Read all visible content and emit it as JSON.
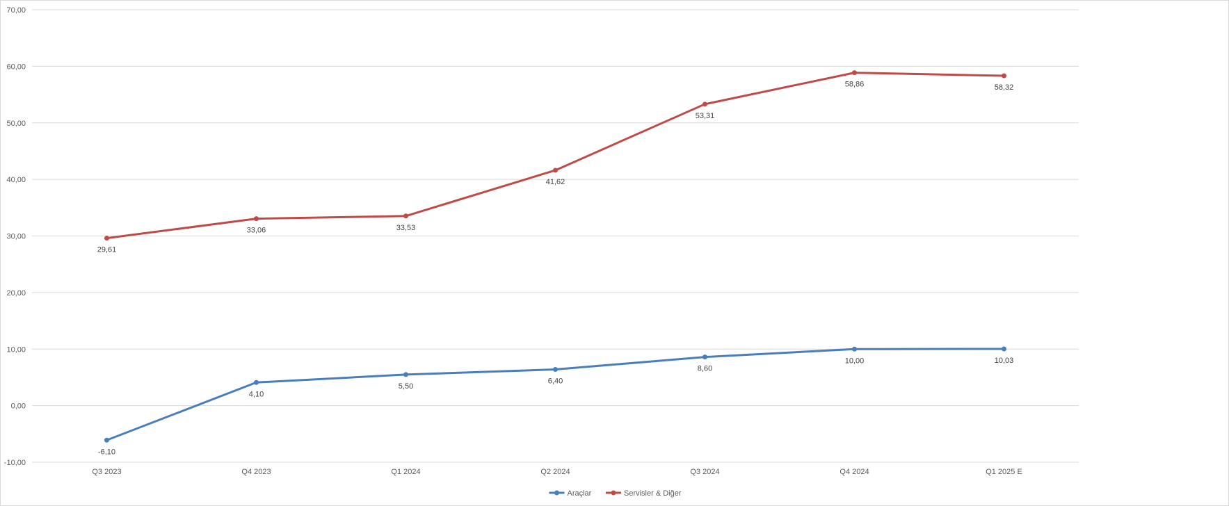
{
  "chart_data": {
    "type": "line",
    "title": "",
    "xlabel": "",
    "ylabel": "",
    "categories": [
      "Q3 2023",
      "Q4 2023",
      "Q1 2024",
      "Q2 2024",
      "Q3 2024",
      "Q4 2024",
      "Q1 2025 E"
    ],
    "ylim": [
      -10,
      70
    ],
    "yticks": [
      -10,
      0,
      10,
      20,
      30,
      40,
      50,
      60,
      70
    ],
    "ytick_labels": [
      "-10,00",
      "0,00",
      "10,00",
      "20,00",
      "30,00",
      "40,00",
      "50,00",
      "60,00",
      "70,00"
    ],
    "grid": true,
    "legend_position": "bottom",
    "series": [
      {
        "name": "Araçlar",
        "color": "#4a7ebb",
        "values": [
          -6.1,
          4.1,
          5.5,
          6.4,
          8.6,
          10.0,
          10.03
        ],
        "labels": [
          "-6,10",
          "4,10",
          "5,50",
          "6,40",
          "8,60",
          "10,00",
          "10,03"
        ]
      },
      {
        "name": "Servisler & Diğer",
        "color": "#be4b48",
        "values": [
          29.61,
          33.06,
          33.53,
          41.62,
          53.31,
          58.86,
          58.32
        ],
        "labels": [
          "29,61",
          "33,06",
          "33,53",
          "41,62",
          "53,31",
          "58,86",
          "58,32"
        ]
      }
    ],
    "colors": {
      "grid": "#d9d9d9",
      "axis_text": "#595959"
    }
  }
}
